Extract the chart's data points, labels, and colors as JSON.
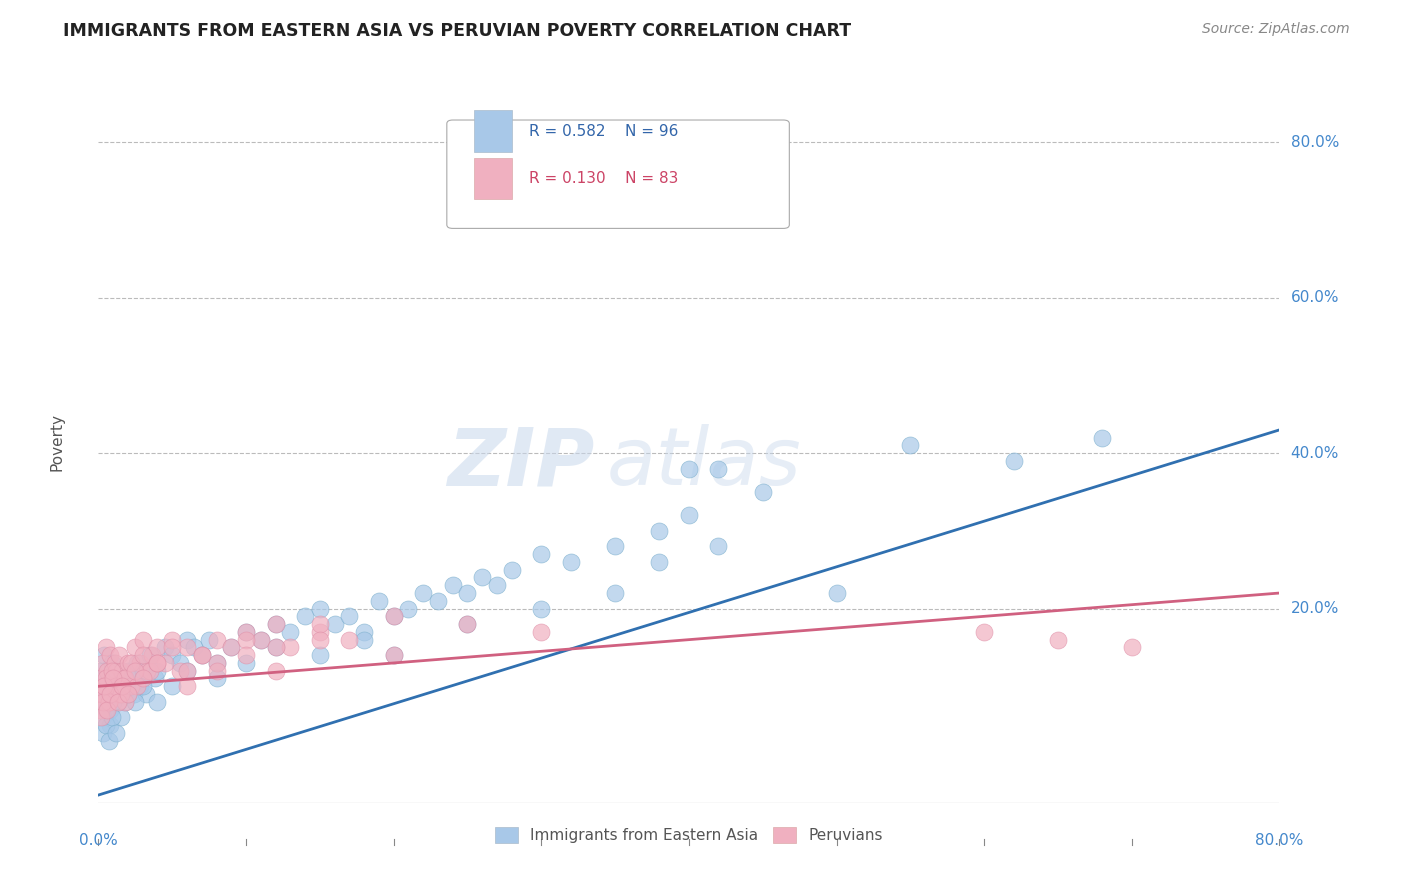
{
  "title": "IMMIGRANTS FROM EASTERN ASIA VS PERUVIAN POVERTY CORRELATION CHART",
  "source": "Source: ZipAtlas.com",
  "ylabel": "Poverty",
  "right_yticks": [
    "80.0%",
    "60.0%",
    "40.0%",
    "20.0%"
  ],
  "right_ytick_vals": [
    0.8,
    0.6,
    0.4,
    0.2
  ],
  "blue_color": "#a8c8e8",
  "pink_color": "#f0b0c0",
  "blue_line_color": "#3070b0",
  "pink_line_color": "#d06080",
  "watermark_zip": "ZIP",
  "watermark_atlas": "atlas",
  "xlim": [
    0.0,
    0.8
  ],
  "ylim": [
    -0.05,
    0.88
  ],
  "blue_scatter_x": [
    0.001,
    0.002,
    0.003,
    0.004,
    0.005,
    0.006,
    0.007,
    0.008,
    0.009,
    0.01,
    0.011,
    0.012,
    0.013,
    0.014,
    0.015,
    0.016,
    0.017,
    0.018,
    0.019,
    0.02,
    0.022,
    0.024,
    0.026,
    0.028,
    0.03,
    0.032,
    0.035,
    0.038,
    0.04,
    0.045,
    0.05,
    0.055,
    0.06,
    0.065,
    0.07,
    0.075,
    0.08,
    0.09,
    0.1,
    0.11,
    0.12,
    0.13,
    0.14,
    0.15,
    0.16,
    0.17,
    0.18,
    0.19,
    0.2,
    0.21,
    0.22,
    0.23,
    0.24,
    0.25,
    0.26,
    0.27,
    0.28,
    0.3,
    0.32,
    0.35,
    0.38,
    0.4,
    0.42,
    0.45,
    0.003,
    0.005,
    0.008,
    0.01,
    0.015,
    0.02,
    0.025,
    0.03,
    0.04,
    0.05,
    0.06,
    0.08,
    0.1,
    0.12,
    0.15,
    0.18,
    0.2,
    0.25,
    0.3,
    0.35,
    0.4,
    0.003,
    0.005,
    0.007,
    0.009,
    0.012,
    0.55,
    0.62,
    0.68,
    0.5,
    0.42,
    0.38
  ],
  "blue_scatter_y": [
    0.1,
    0.12,
    0.08,
    0.14,
    0.1,
    0.09,
    0.11,
    0.07,
    0.13,
    0.1,
    0.09,
    0.11,
    0.08,
    0.12,
    0.1,
    0.09,
    0.11,
    0.08,
    0.1,
    0.12,
    0.11,
    0.09,
    0.13,
    0.1,
    0.12,
    0.09,
    0.14,
    0.11,
    0.12,
    0.15,
    0.14,
    0.13,
    0.16,
    0.15,
    0.14,
    0.16,
    0.13,
    0.15,
    0.17,
    0.16,
    0.18,
    0.17,
    0.19,
    0.2,
    0.18,
    0.19,
    0.17,
    0.21,
    0.19,
    0.2,
    0.22,
    0.21,
    0.23,
    0.22,
    0.24,
    0.23,
    0.25,
    0.27,
    0.26,
    0.28,
    0.3,
    0.32,
    0.28,
    0.35,
    0.06,
    0.07,
    0.05,
    0.08,
    0.06,
    0.09,
    0.08,
    0.1,
    0.08,
    0.1,
    0.12,
    0.11,
    0.13,
    0.15,
    0.14,
    0.16,
    0.14,
    0.18,
    0.2,
    0.22,
    0.38,
    0.04,
    0.05,
    0.03,
    0.06,
    0.04,
    0.41,
    0.39,
    0.42,
    0.22,
    0.38,
    0.26
  ],
  "pink_scatter_x": [
    0.001,
    0.002,
    0.003,
    0.004,
    0.005,
    0.006,
    0.007,
    0.008,
    0.009,
    0.01,
    0.011,
    0.012,
    0.013,
    0.014,
    0.015,
    0.016,
    0.017,
    0.018,
    0.02,
    0.022,
    0.025,
    0.028,
    0.03,
    0.033,
    0.036,
    0.04,
    0.045,
    0.05,
    0.055,
    0.06,
    0.07,
    0.08,
    0.09,
    0.1,
    0.11,
    0.12,
    0.13,
    0.15,
    0.17,
    0.2,
    0.002,
    0.003,
    0.005,
    0.007,
    0.009,
    0.012,
    0.015,
    0.018,
    0.022,
    0.026,
    0.03,
    0.035,
    0.04,
    0.05,
    0.06,
    0.07,
    0.08,
    0.1,
    0.12,
    0.15,
    0.002,
    0.003,
    0.004,
    0.006,
    0.008,
    0.01,
    0.013,
    0.016,
    0.02,
    0.025,
    0.03,
    0.04,
    0.06,
    0.08,
    0.1,
    0.12,
    0.15,
    0.2,
    0.25,
    0.3,
    0.6,
    0.65,
    0.7
  ],
  "pink_scatter_y": [
    0.09,
    0.11,
    0.13,
    0.1,
    0.15,
    0.12,
    0.08,
    0.14,
    0.11,
    0.1,
    0.13,
    0.12,
    0.09,
    0.14,
    0.1,
    0.12,
    0.11,
    0.08,
    0.13,
    0.1,
    0.15,
    0.13,
    0.16,
    0.12,
    0.14,
    0.15,
    0.13,
    0.16,
    0.12,
    0.15,
    0.14,
    0.16,
    0.15,
    0.17,
    0.16,
    0.18,
    0.15,
    0.17,
    0.16,
    0.19,
    0.07,
    0.09,
    0.11,
    0.08,
    0.12,
    0.1,
    0.09,
    0.11,
    0.13,
    0.1,
    0.14,
    0.12,
    0.13,
    0.15,
    0.12,
    0.14,
    0.13,
    0.16,
    0.15,
    0.18,
    0.06,
    0.08,
    0.1,
    0.07,
    0.09,
    0.11,
    0.08,
    0.1,
    0.09,
    0.12,
    0.11,
    0.13,
    0.1,
    0.12,
    0.14,
    0.12,
    0.16,
    0.14,
    0.18,
    0.17,
    0.17,
    0.16,
    0.15
  ],
  "blue_line_x0": 0.0,
  "blue_line_y0": -0.04,
  "blue_line_x1": 0.8,
  "blue_line_y1": 0.43,
  "pink_line_x0": 0.0,
  "pink_line_x1": 0.8,
  "pink_line_y0": 0.1,
  "pink_line_y1": 0.22
}
